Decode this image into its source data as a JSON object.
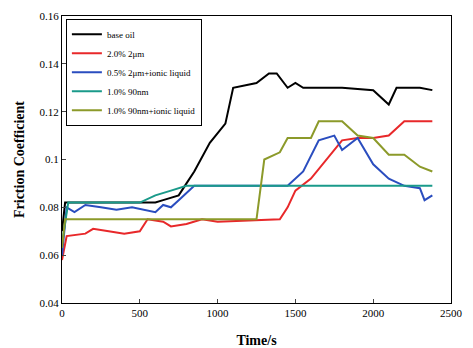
{
  "chart_data": {
    "type": "line",
    "x_label": "Time/s",
    "y_label": "Friction Coefficient",
    "xlim": [
      0,
      2500
    ],
    "ylim": [
      0.04,
      0.16
    ],
    "xticks": [
      0,
      500,
      1000,
      1500,
      2000,
      2500
    ],
    "yticks": [
      0.04,
      0.06,
      0.08,
      0.1,
      0.12,
      0.14,
      0.16
    ],
    "legend": "top-left",
    "grid": false,
    "series": [
      {
        "name": "base oil",
        "color": "#000000",
        "x": [
          0,
          20,
          100,
          300,
          500,
          600,
          650,
          750,
          800,
          850,
          950,
          1050,
          1100,
          1250,
          1330,
          1380,
          1450,
          1500,
          1550,
          1800,
          2000,
          2100,
          2150,
          2300,
          2380
        ],
        "values": [
          0.07,
          0.082,
          0.082,
          0.082,
          0.082,
          0.082,
          0.083,
          0.085,
          0.09,
          0.095,
          0.107,
          0.115,
          0.13,
          0.132,
          0.136,
          0.136,
          0.13,
          0.132,
          0.13,
          0.13,
          0.129,
          0.123,
          0.13,
          0.13,
          0.129
        ]
      },
      {
        "name": "2.0% 2μm",
        "color": "#e8282a",
        "x": [
          0,
          30,
          150,
          200,
          300,
          400,
          500,
          550,
          650,
          700,
          800,
          900,
          1000,
          1400,
          1450,
          1500,
          1600,
          1700,
          1800,
          1900,
          2000,
          2100,
          2200,
          2380
        ],
        "values": [
          0.058,
          0.068,
          0.069,
          0.071,
          0.07,
          0.069,
          0.07,
          0.075,
          0.074,
          0.072,
          0.073,
          0.075,
          0.074,
          0.075,
          0.08,
          0.087,
          0.092,
          0.1,
          0.108,
          0.109,
          0.109,
          0.11,
          0.116,
          0.116
        ]
      },
      {
        "name": "0.5% 2μm+ionic liquid",
        "color": "#2a4dbf",
        "x": [
          0,
          30,
          80,
          150,
          250,
          350,
          450,
          600,
          650,
          700,
          750,
          850,
          1450,
          1550,
          1650,
          1750,
          1800,
          1900,
          2000,
          2100,
          2200,
          2300,
          2330,
          2380
        ],
        "values": [
          0.06,
          0.08,
          0.078,
          0.081,
          0.08,
          0.079,
          0.08,
          0.078,
          0.081,
          0.08,
          0.083,
          0.089,
          0.089,
          0.095,
          0.108,
          0.11,
          0.104,
          0.109,
          0.098,
          0.092,
          0.089,
          0.088,
          0.083,
          0.085
        ]
      },
      {
        "name": "1.0% 90nm",
        "color": "#1a9a8a",
        "x": [
          0,
          40,
          500,
          600,
          700,
          800,
          2380
        ],
        "values": [
          0.065,
          0.082,
          0.082,
          0.085,
          0.087,
          0.089,
          0.089
        ]
      },
      {
        "name": "1.0% 90nm+ionic liquid",
        "color": "#8c9a2a",
        "x": [
          0,
          20,
          1250,
          1300,
          1400,
          1450,
          1600,
          1650,
          1800,
          1900,
          2000,
          2100,
          2200,
          2300,
          2380
        ],
        "values": [
          0.063,
          0.075,
          0.075,
          0.1,
          0.103,
          0.109,
          0.109,
          0.116,
          0.116,
          0.11,
          0.109,
          0.102,
          0.102,
          0.097,
          0.095
        ]
      }
    ]
  }
}
